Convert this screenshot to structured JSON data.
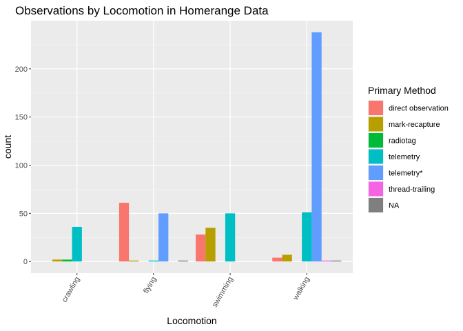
{
  "chart_data": {
    "type": "bar",
    "title": "Observations by Locomotion in Homerange Data",
    "xlabel": "Locomotion",
    "ylabel": "count",
    "categories": [
      "crawling",
      "flying",
      "swimming",
      "walking"
    ],
    "yticks": [
      0,
      50,
      100,
      150,
      200
    ],
    "ylim": [
      -12,
      250
    ],
    "grid": true,
    "legend": {
      "title": "Primary Method",
      "placement": "right"
    },
    "series": [
      {
        "name": "direct observation",
        "color": "#F8766D",
        "values": [
          null,
          61,
          28,
          4
        ]
      },
      {
        "name": "mark-recapture",
        "color": "#B79F00",
        "values": [
          2,
          1,
          35,
          7
        ]
      },
      {
        "name": "radiotag",
        "color": "#00BA38",
        "values": [
          2,
          null,
          null,
          null
        ]
      },
      {
        "name": "telemetry",
        "color": "#00BFC4",
        "values": [
          36,
          1,
          50,
          51
        ]
      },
      {
        "name": "telemetry*",
        "color": "#619CFF",
        "values": [
          null,
          50,
          null,
          238
        ]
      },
      {
        "name": "thread-trailing",
        "color": "#F564E3",
        "values": [
          null,
          null,
          null,
          1
        ]
      },
      {
        "name": "NA",
        "color": "#7F7F7F",
        "values": [
          null,
          1,
          null,
          1
        ]
      }
    ]
  }
}
